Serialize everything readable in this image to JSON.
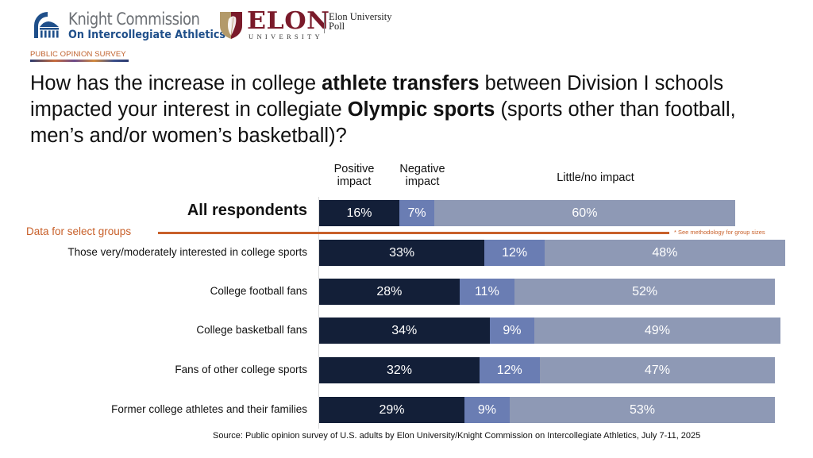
{
  "header": {
    "knight_logo": {
      "icon": "capitol-dome-icon",
      "line1": "Knight Commission",
      "line2": "On Intercollegiate Athletics"
    },
    "elon_logo": {
      "icon": "shield-feather-icon",
      "wordmark": "ELON",
      "sub": "UNIVERSITY",
      "poll_line1": "Elon University",
      "poll_line2": "Poll"
    },
    "tag": "PUBLIC OPINION SURVEY"
  },
  "question": {
    "part1": "How has the increase in college ",
    "bold1": "athlete transfers",
    "part2": " between Division I schools impacted your interest in collegiate ",
    "bold2": "Olympic sports",
    "part3": " (sports other than football, men’s and/or women’s basketball)?"
  },
  "groups_divider_label": "Data for select groups",
  "methodology_note": "* See methodology for group sizes",
  "source": "Source: Public opinion survey of U.S. adults by Elon University/Knight Commission on Intercollegiate Athletics, July 7-11, 2025",
  "colors": {
    "positive": "#131f38",
    "negative": "#6a7db3",
    "little": "#8e99b5",
    "accent": "#c8602a"
  },
  "chart_data": {
    "type": "bar",
    "orientation": "horizontal-stacked",
    "title": "How has the increase in college athlete transfers between Division I schools impacted your interest in collegiate Olympic sports (sports other than football, men’s and/or women’s basketball)?",
    "xlabel": "",
    "ylabel": "",
    "xlim": [
      0,
      100
    ],
    "unit": "%",
    "grid": false,
    "legend_placement": "top",
    "series": [
      {
        "name": "Positive impact",
        "header_line1": "Positive",
        "header_line2": "impact",
        "values": [
          16,
          33,
          28,
          34,
          32,
          29
        ]
      },
      {
        "name": "Negative impact",
        "header_line1": "Negative",
        "header_line2": "impact",
        "values": [
          7,
          12,
          11,
          9,
          12,
          9
        ]
      },
      {
        "name": "Little/no impact",
        "header_line1": "Little/no impact",
        "header_line2": "",
        "values": [
          60,
          48,
          52,
          49,
          47,
          53
        ]
      }
    ],
    "categories": [
      "All respondents",
      "Those very/moderately interested in college sports",
      "College football fans",
      "College basketball fans",
      "Fans of other college sports",
      "Former college athletes and their families"
    ],
    "labels": [
      [
        "16%",
        "7%",
        "60%"
      ],
      [
        "33%",
        "12%",
        "48%"
      ],
      [
        "28%",
        "11%",
        "52%"
      ],
      [
        "34%",
        "9%",
        "49%"
      ],
      [
        "32%",
        "12%",
        "47%"
      ],
      [
        "29%",
        "9%",
        "53%"
      ]
    ]
  }
}
